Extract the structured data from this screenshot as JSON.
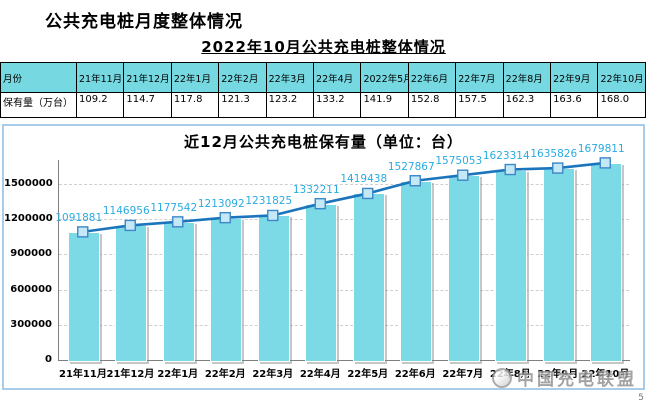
{
  "page": {
    "title": "公共充电桩月度整体情况",
    "subtitle": "2022年10月公共充电桩整体情况",
    "page_number": "5"
  },
  "table": {
    "row1_header": "月份",
    "row2_header": "保有量（万台）",
    "months": [
      "21年11月",
      "21年12月",
      "22年1月",
      "22年2月",
      "22年3月",
      "22年4月",
      "2022年5月",
      "22年6月",
      "22年7月",
      "22年8月",
      "22年9月",
      "22年10月"
    ],
    "values": [
      "109.2",
      "114.7",
      "117.8",
      "121.3",
      "123.2",
      "133.2",
      "141.9",
      "152.8",
      "157.5",
      "162.3",
      "163.6",
      "168.0"
    ]
  },
  "chart_data": {
    "type": "bar+line",
    "title": "近12月公共充电桩保有量（单位：台）",
    "categories": [
      "21年11月",
      "21年12月",
      "22年1月",
      "22年2月",
      "22年3月",
      "22年4月",
      "22年5月",
      "22年6月",
      "22年7月",
      "22年8月",
      "22年9月",
      "22年10月"
    ],
    "values": [
      1091881,
      1146956,
      1177542,
      1213092,
      1231825,
      1332211,
      1419438,
      1527867,
      1575053,
      1623314,
      1635826,
      1679811
    ],
    "ylim": [
      0,
      1730000
    ],
    "yticks": [
      0,
      300000,
      600000,
      900000,
      1200000,
      1500000
    ],
    "grid": "dashed-horizontal",
    "legend": "none",
    "bar_color": "#7CDAE6",
    "bar_shadow_color": "#9c9c9c",
    "line_color": "#1B75BC",
    "marker_fill": "#C5E8F7",
    "marker_stroke": "#3C87C7",
    "label_color": "#29ABE2"
  },
  "watermark": {
    "text": "中国充电联盟"
  }
}
